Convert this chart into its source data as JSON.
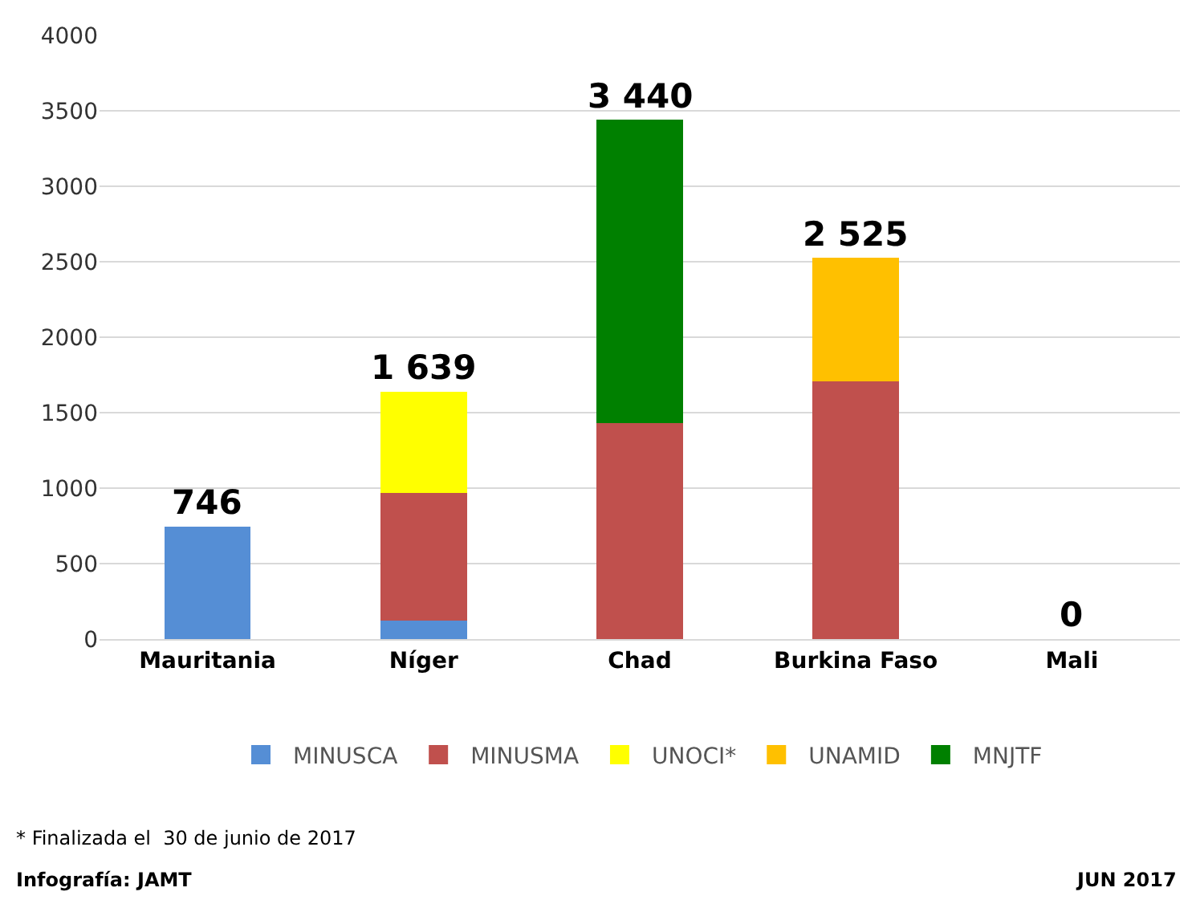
{
  "chart_data": {
    "type": "bar",
    "stacked": true,
    "categories": [
      "Mauritania",
      "Níger",
      "Chad",
      "Burkina Faso",
      "Mali"
    ],
    "series": [
      {
        "name": "MINUSCA",
        "color": "#558ed5",
        "values": [
          746,
          120,
          0,
          0,
          0
        ]
      },
      {
        "name": "MINUSMA",
        "color": "#c0504d",
        "values": [
          0,
          850,
          1430,
          1710,
          0
        ]
      },
      {
        "name": "UNOCI*",
        "color": "#ffff00",
        "values": [
          0,
          669,
          0,
          0,
          0
        ]
      },
      {
        "name": "UNAMID",
        "color": "#ffc000",
        "values": [
          0,
          0,
          0,
          815,
          0
        ]
      },
      {
        "name": "MNJTF",
        "color": "#008000",
        "values": [
          0,
          0,
          2010,
          0,
          0
        ]
      }
    ],
    "totals": [
      "746",
      "1 639",
      "3 440",
      "2 525",
      "0"
    ],
    "ylim": [
      0,
      4000
    ],
    "yticks": [
      0,
      500,
      1000,
      1500,
      2000,
      2500,
      3000,
      3500,
      4000
    ],
    "grid": "y",
    "legend": "bottom",
    "annotations": [
      "* Finalizada el  30 de junio de 2017",
      "Infografía: JAMT",
      "JUN 2017"
    ]
  }
}
